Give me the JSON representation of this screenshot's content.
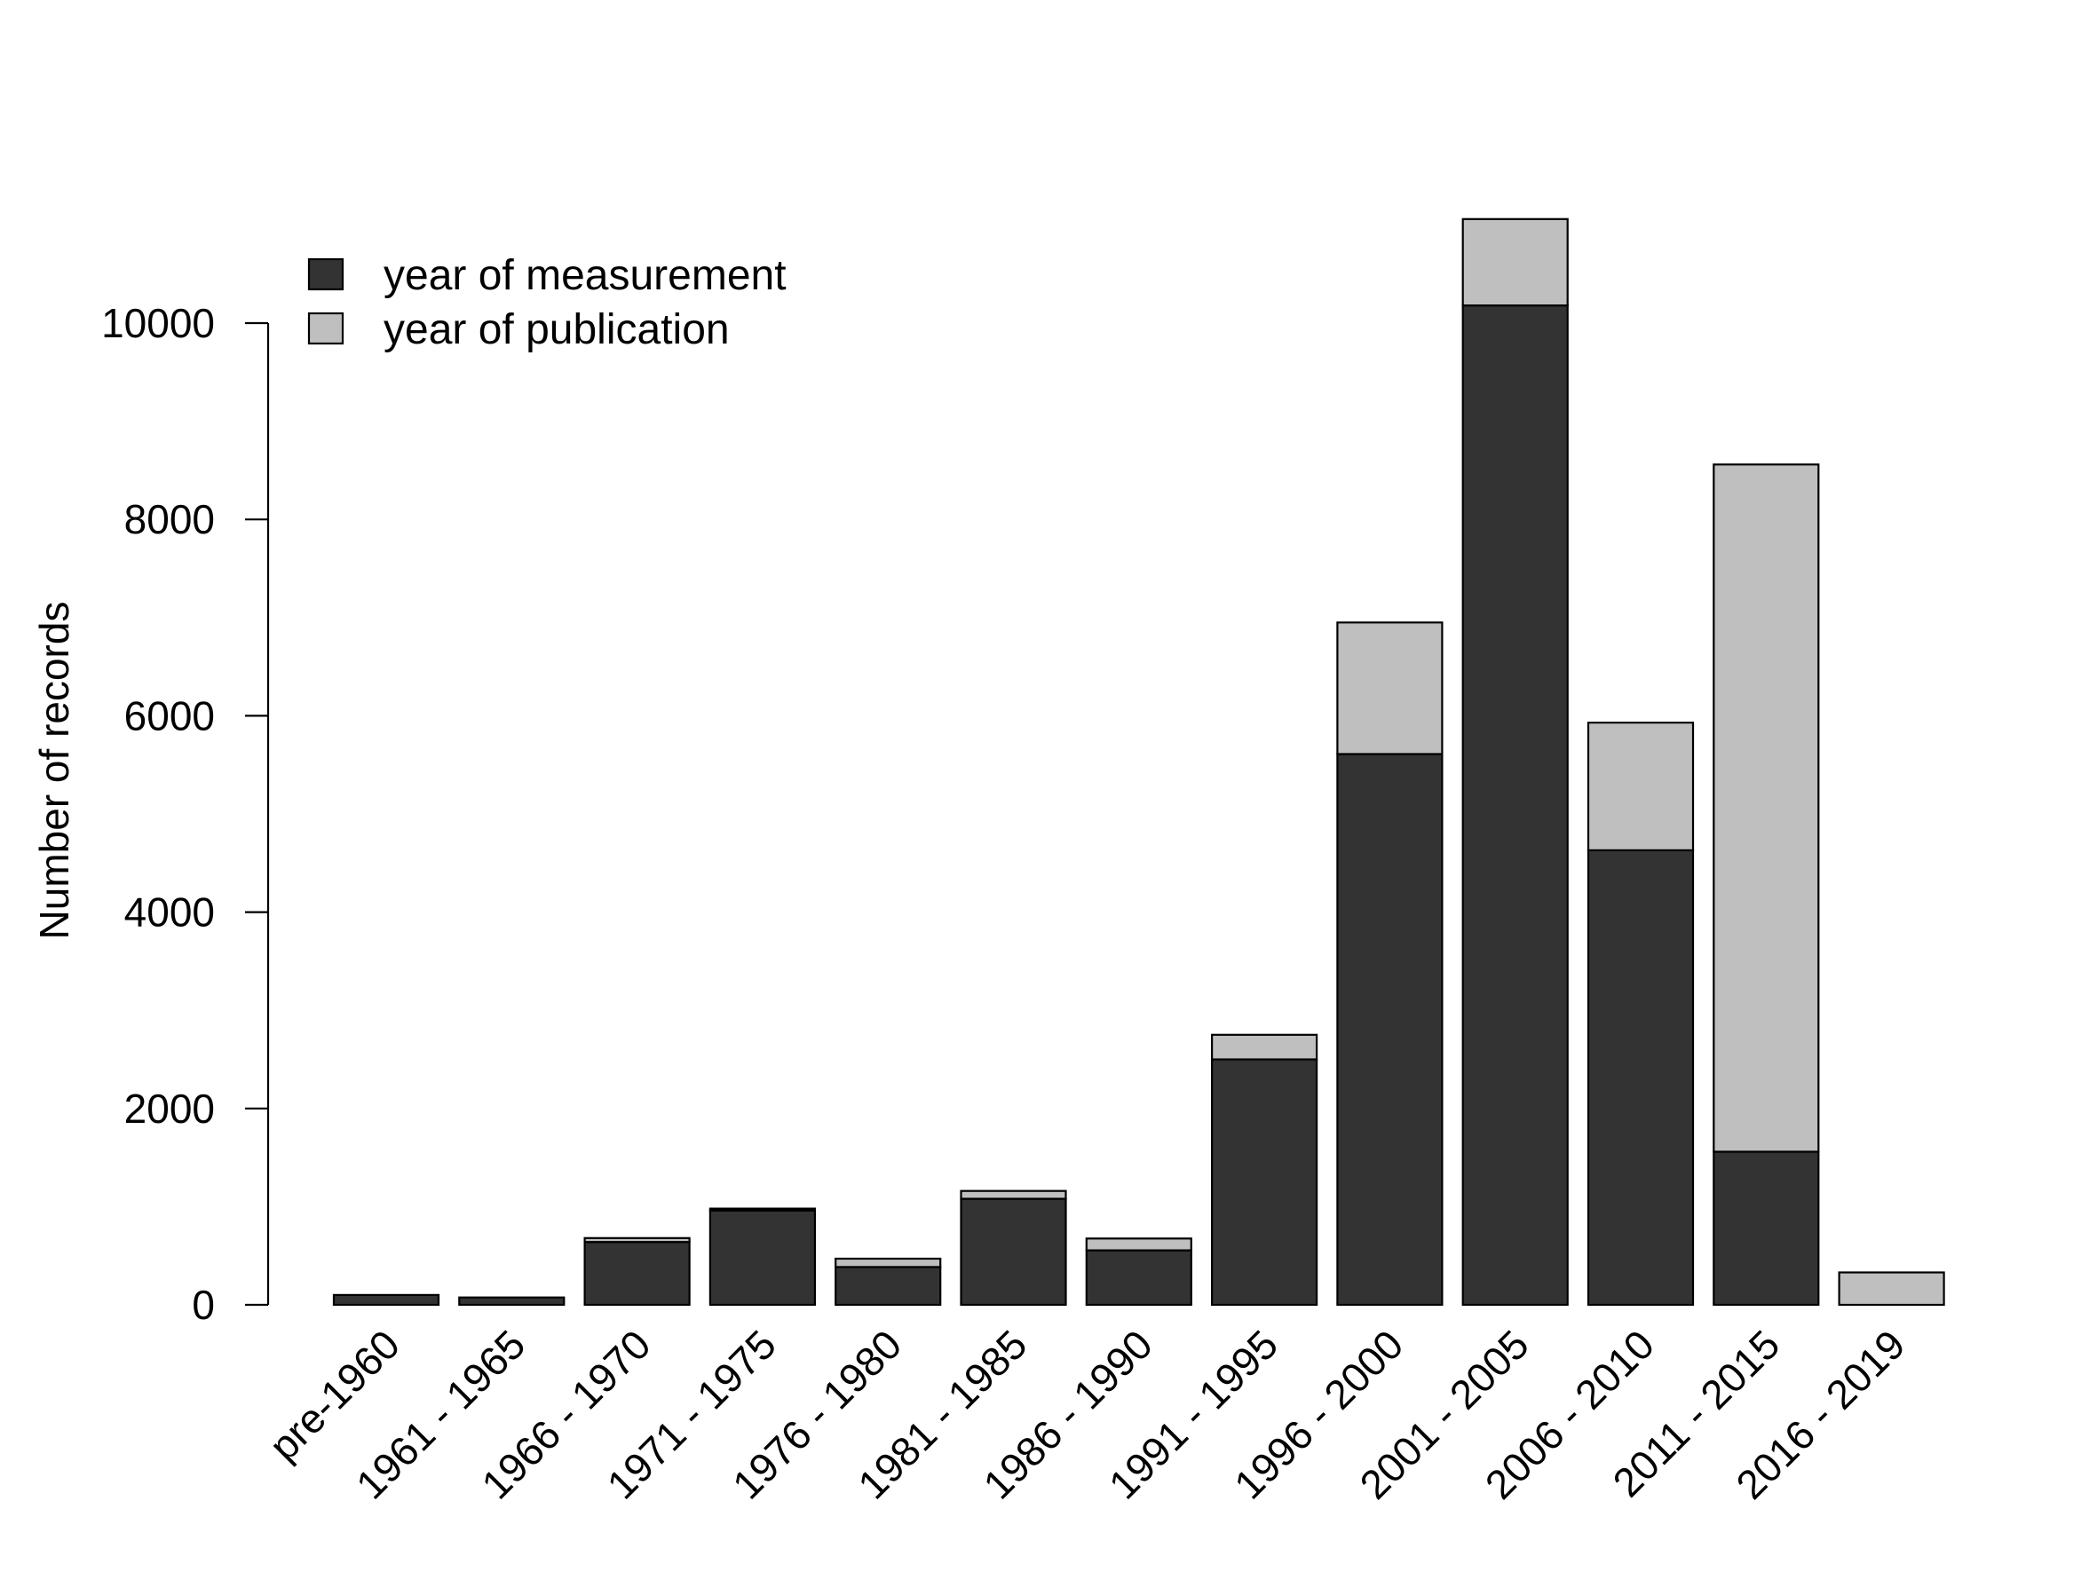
{
  "chart_data": {
    "type": "bar",
    "stacked": true,
    "title": "",
    "xlabel": "",
    "ylabel": "Number of records",
    "ylim": [
      0,
      11100
    ],
    "yticks": [
      0,
      2000,
      4000,
      6000,
      8000,
      10000
    ],
    "grid": false,
    "legend_position": "top-left",
    "categories": [
      "pre-1960",
      "1961 - 1965",
      "1966 - 1970",
      "1971 - 1975",
      "1976 - 1980",
      "1981 - 1985",
      "1986 - 1990",
      "1991 - 1995",
      "1996 - 2000",
      "2001 - 2005",
      "2006 - 2010",
      "2011 - 2015",
      "2016 - 2019"
    ],
    "series": [
      {
        "name": "year of measurement",
        "color": "#333333",
        "values": [
          100,
          75,
          640,
          960,
          385,
          1080,
          555,
          2500,
          5610,
          10180,
          4630,
          1560,
          0
        ]
      },
      {
        "name": "year of publication",
        "color": "#bfbfbf",
        "values": [
          0,
          0,
          40,
          20,
          85,
          80,
          120,
          250,
          1340,
          880,
          1300,
          7000,
          330
        ]
      }
    ]
  }
}
